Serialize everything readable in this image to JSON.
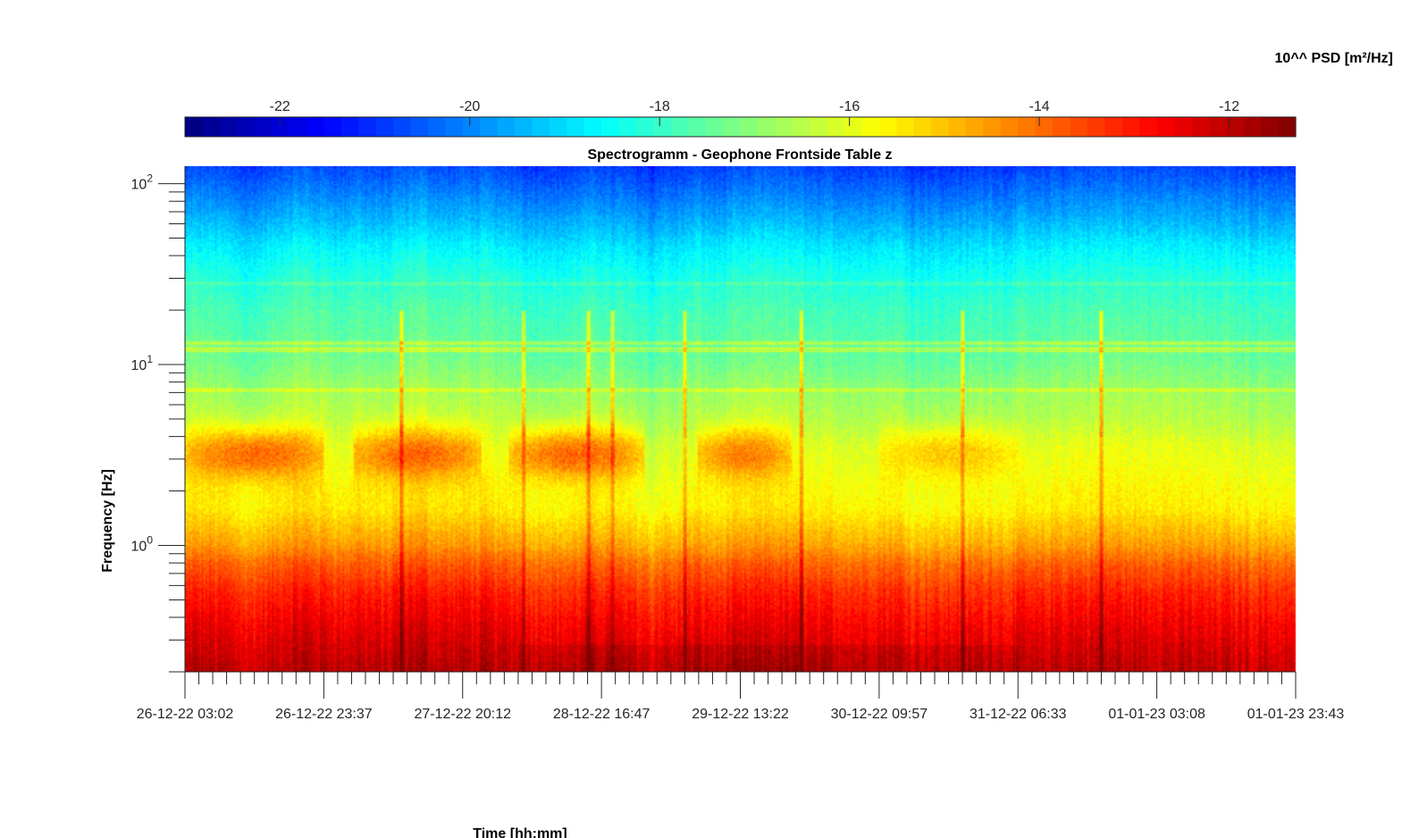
{
  "chart_data": {
    "type": "heatmap",
    "title": "Spectrogramm - Geophone Frontside Table z",
    "xlabel": "Time [hh:mm]",
    "ylabel": "Frequency [Hz]",
    "colorbar_label": "10^^ PSD [m²/Hz]",
    "colormap": "jet",
    "clim": [
      -23,
      -11.3
    ],
    "colorbar_ticks": [
      "-22",
      "-20",
      "-18",
      "-16",
      "-14",
      "-12"
    ],
    "colorbar_tick_values": [
      -22,
      -20,
      -18,
      -16,
      -14,
      -12
    ],
    "y_scale": "log",
    "ylim": [
      0.2,
      125
    ],
    "y_ticks": [
      {
        "base": "10",
        "exp": "2",
        "value": 100
      },
      {
        "base": "10",
        "exp": "1",
        "value": 10
      },
      {
        "base": "10",
        "exp": "0",
        "value": 1
      }
    ],
    "x_tick_labels": [
      "26-12-22 03:02",
      "26-12-22 23:37",
      "27-12-22 20:12",
      "28-12-22 16:47",
      "29-12-22 13:22",
      "30-12-22 09:57",
      "31-12-22 06:33",
      "01-01-23 03:08",
      "01-01-23 23:43"
    ],
    "minor_ticks_per_major": 10,
    "band_profile": {
      "log10_freq": [
        -0.7,
        -0.45,
        -0.25,
        -0.1,
        0.0,
        0.2,
        0.4,
        0.55,
        0.7,
        0.85,
        1.0,
        1.1,
        1.3,
        1.5,
        1.65,
        1.8,
        2.1
      ],
      "psd": [
        -12.0,
        -12.6,
        -13.2,
        -13.9,
        -14.6,
        -15.5,
        -15.8,
        -16.0,
        -16.5,
        -16.8,
        -17.3,
        -17.5,
        -17.8,
        -18.3,
        -18.8,
        -19.5,
        -20.8
      ]
    },
    "activity_periods": [
      {
        "start": "26-12-22 03:02",
        "end": "26-12-22 23:37",
        "peak_psd": -13.8
      },
      {
        "start": "27-12-22 04:00",
        "end": "27-12-22 23:00",
        "peak_psd": -13.8
      },
      {
        "start": "28-12-22 03:00",
        "end": "28-12-22 23:00",
        "peak_psd": -13.8
      },
      {
        "start": "29-12-22 07:00",
        "end": "29-12-22 21:00",
        "peak_psd": -14.1
      },
      {
        "start": "30-12-22 10:00",
        "end": "31-12-22 06:33",
        "peak_psd": -15.0
      }
    ]
  }
}
